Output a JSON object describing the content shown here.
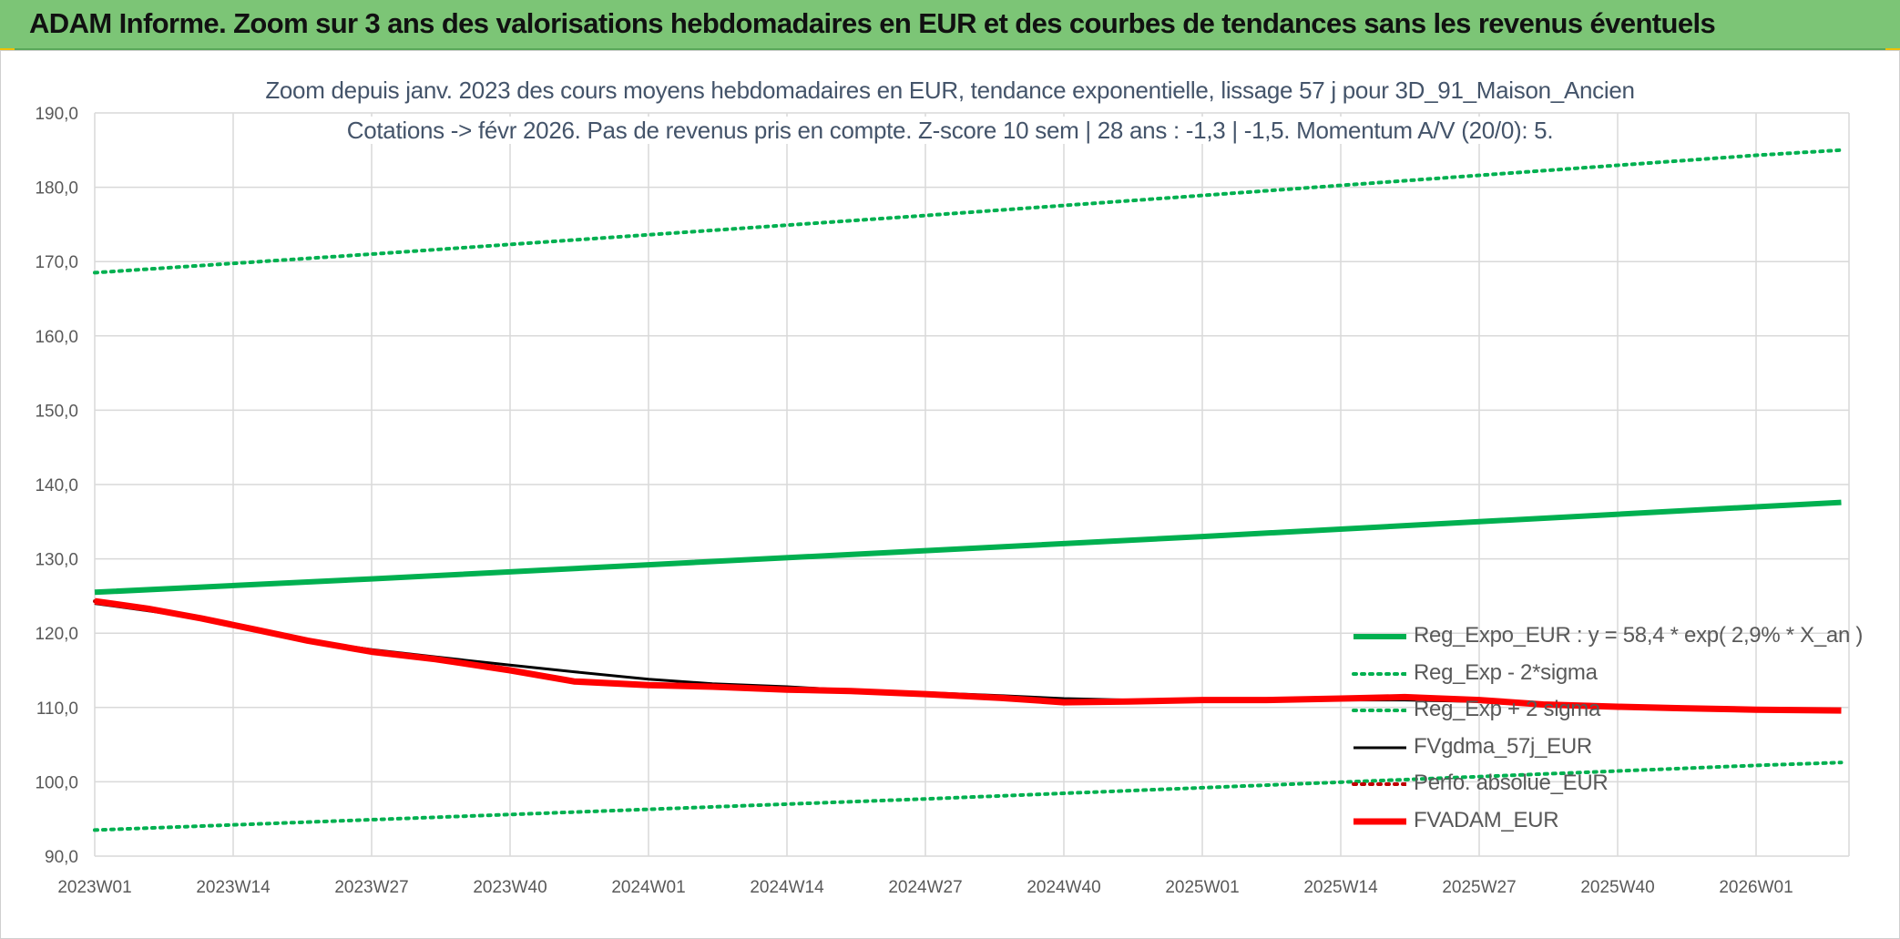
{
  "banner": {
    "title": "ADAM Informe. Zoom sur 3 ans des valorisations hebdomadaires en EUR et des courbes de tendances sans les revenus éventuels",
    "background": "#7cc576"
  },
  "chart_data": {
    "type": "line",
    "title": "Zoom depuis janv. 2023 des cours moyens hebdomadaires en EUR, tendance exponentielle, lissage 57 j pour 3D_91_Maison_Ancien",
    "subtitle": "Cotations -> févr 2026. Pas de revenus pris en compte. Z-score 10 sem | 28 ans : -1,3 | -1,5. Momentum A/V (20/0): 5.",
    "xlabel": "",
    "ylabel": "",
    "x_ticks": [
      "2023W01",
      "2023W14",
      "2023W27",
      "2023W40",
      "2024W01",
      "2024W14",
      "2024W27",
      "2024W40",
      "2025W01",
      "2025W14",
      "2025W27",
      "2025W40",
      "2026W01"
    ],
    "y_ticks": [
      "90,0",
      "100,0",
      "110,0",
      "120,0",
      "130,0",
      "140,0",
      "150,0",
      "160,0",
      "170,0",
      "180,0",
      "190,0"
    ],
    "ylim": [
      90,
      190
    ],
    "x_range_weeks": [
      0,
      164
    ],
    "grid": true,
    "legend_position": "bottom-right",
    "series": [
      {
        "name": "Reg_Expo_EUR : y = 58,4 * exp( 2,9% *  X_an )",
        "color": "#00b050",
        "style": "solid-thick",
        "x_weeks": [
          0,
          26,
          52,
          78,
          104,
          130,
          156,
          164
        ],
        "values": [
          125.5,
          127.3,
          129.2,
          131.1,
          133.0,
          135.0,
          137.0,
          137.6
        ]
      },
      {
        "name": "Reg_Exp - 2*sigma",
        "color": "#00b050",
        "style": "dotted",
        "x_weeks": [
          0,
          26,
          52,
          78,
          104,
          130,
          156,
          164
        ],
        "values": [
          93.5,
          94.9,
          96.3,
          97.7,
          99.2,
          100.7,
          102.2,
          102.6
        ]
      },
      {
        "name": "Reg_Exp + 2 sigma",
        "color": "#00b050",
        "style": "dotted",
        "x_weeks": [
          0,
          26,
          52,
          78,
          104,
          130,
          156,
          164
        ],
        "values": [
          168.5,
          171.0,
          173.6,
          176.2,
          178.9,
          181.6,
          184.3,
          185.0
        ]
      },
      {
        "name": "FVgdma_57j_EUR",
        "color": "#000000",
        "style": "solid",
        "x_weeks": [
          0,
          5,
          10,
          15,
          20,
          26,
          32,
          39,
          45,
          52,
          58,
          65,
          71,
          78,
          85,
          91,
          97,
          104,
          110,
          117,
          123,
          130,
          136,
          143,
          149,
          156,
          164
        ],
        "values": [
          124.0,
          123.0,
          122.0,
          120.5,
          119.0,
          117.8,
          116.8,
          115.7,
          114.8,
          113.8,
          113.2,
          112.8,
          112.3,
          112.0,
          111.6,
          111.2,
          111.0,
          111.0,
          111.0,
          111.0,
          111.0,
          110.8,
          110.3,
          110.0,
          109.8,
          109.7,
          109.7
        ]
      },
      {
        "name": "Perfo. absolue_EUR",
        "color": "#c00000",
        "style": "dotted",
        "x_weeks": [
          0,
          5,
          10,
          15,
          20,
          26,
          32,
          39,
          45,
          52,
          58,
          65,
          71,
          78,
          85,
          91,
          97,
          104,
          110,
          117,
          123,
          130,
          136,
          143,
          149,
          156,
          164
        ],
        "values": [
          124.3,
          123.3,
          122.0,
          120.5,
          119.0,
          117.5,
          116.5,
          115.0,
          113.5,
          113.0,
          112.8,
          112.4,
          112.2,
          111.8,
          111.3,
          110.7,
          110.8,
          111.0,
          111.0,
          111.2,
          111.4,
          111.0,
          110.4,
          110.1,
          109.9,
          109.7,
          109.6
        ]
      },
      {
        "name": "FVADAM_EUR",
        "color": "#ff0000",
        "style": "solid-thick",
        "x_weeks": [
          0,
          5,
          10,
          15,
          20,
          26,
          32,
          39,
          45,
          52,
          58,
          65,
          71,
          78,
          85,
          91,
          97,
          104,
          110,
          117,
          123,
          130,
          136,
          143,
          149,
          156,
          164
        ],
        "values": [
          124.3,
          123.3,
          122.0,
          120.5,
          119.0,
          117.5,
          116.5,
          115.0,
          113.5,
          113.0,
          112.8,
          112.4,
          112.2,
          111.8,
          111.3,
          110.7,
          110.8,
          111.0,
          111.0,
          111.2,
          111.4,
          111.0,
          110.4,
          110.1,
          109.9,
          109.7,
          109.6
        ]
      }
    ]
  }
}
